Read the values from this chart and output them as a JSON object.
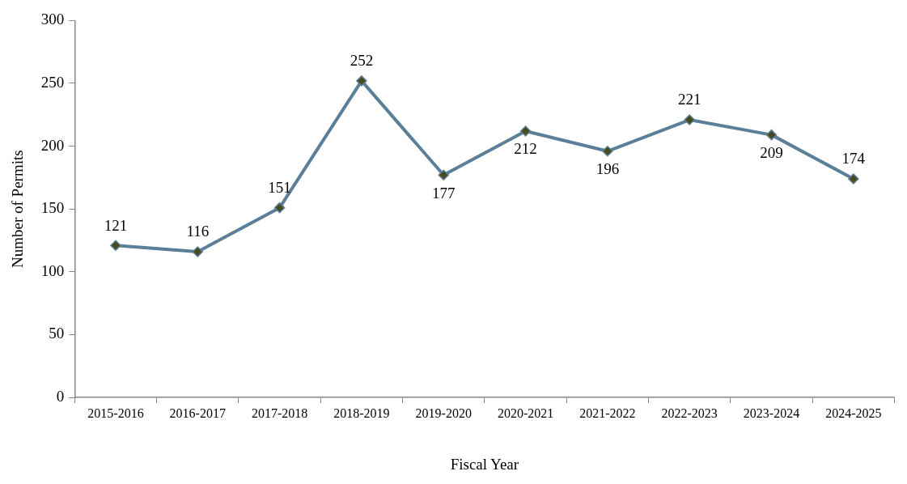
{
  "chart_data": {
    "type": "line",
    "xlabel": "Fiscal Year",
    "ylabel": "Number of Permits",
    "categories": [
      "2015-2016",
      "2016-2017",
      "2017-2018",
      "2018-2019",
      "2019-2020",
      "2020-2021",
      "2021-2022",
      "2022-2023",
      "2023-2024",
      "2024-2025"
    ],
    "series": [
      {
        "color": "#5b7f99",
        "values": [
          121,
          116,
          151,
          252,
          177,
          212,
          196,
          221,
          209,
          174
        ]
      }
    ],
    "ylim": [
      0,
      300
    ],
    "yticks": [
      0,
      50,
      100,
      150,
      200,
      250,
      300
    ],
    "marker": "diamond",
    "data_labels": true,
    "grid": false,
    "legend": false
  }
}
